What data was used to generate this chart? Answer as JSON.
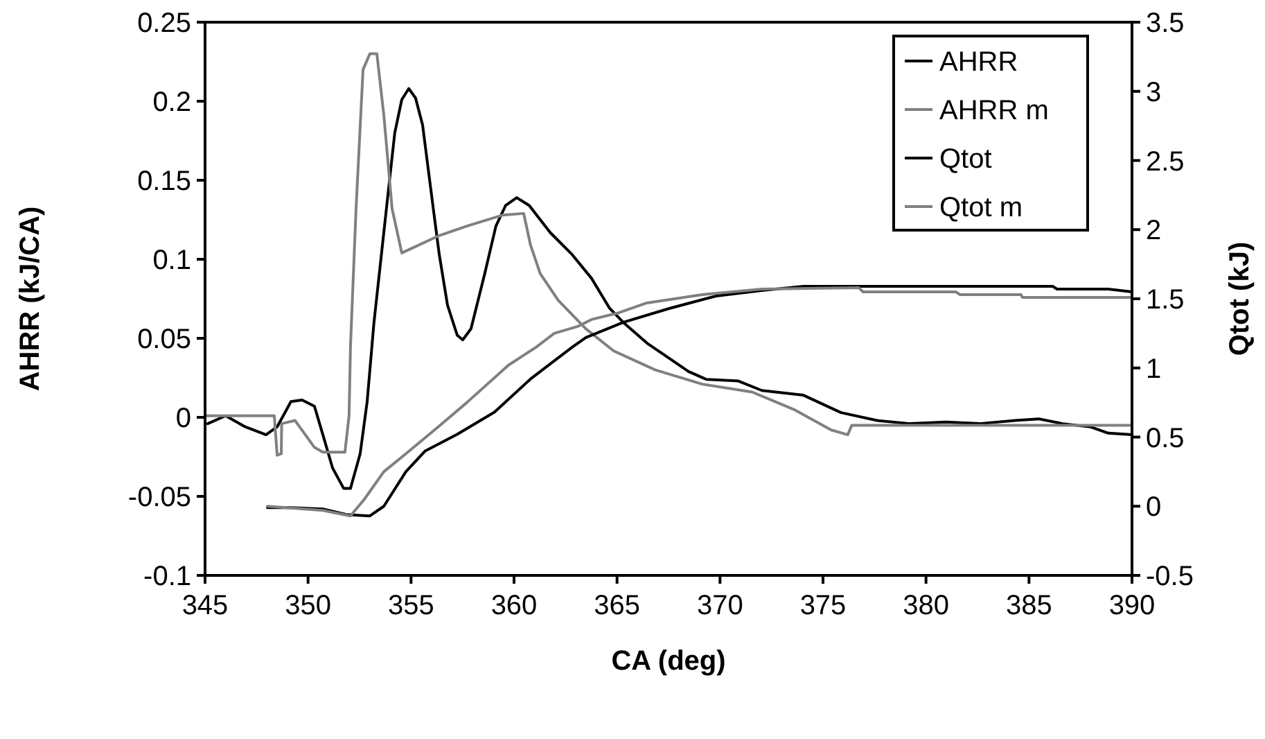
{
  "chart_data": {
    "type": "line",
    "xlabel": "CA (deg)",
    "ylabel": "AHRR (kJ/CA)",
    "y2label": "Qtot (kJ)",
    "xlim": [
      345,
      390
    ],
    "xticks": [
      345,
      350,
      355,
      360,
      365,
      370,
      375,
      380,
      385,
      390
    ],
    "ylim": [
      -0.1,
      0.25
    ],
    "yticks": [
      -0.1,
      -0.05,
      0,
      0.05,
      0.1,
      0.15,
      0.2,
      0.25
    ],
    "y2lim": [
      -0.5,
      3.5
    ],
    "y2ticks": [
      -0.5,
      0,
      0.5,
      1,
      1.5,
      2,
      2.5,
      3,
      3.5
    ],
    "grid": false,
    "legend": "top right",
    "marker": "none",
    "line_style": "solid",
    "series": [
      {
        "name": "AHRR",
        "color": "#000000",
        "x": [
          345.13,
          346.0,
          346.95,
          347.96,
          348.5,
          349.17,
          349.71,
          350.31,
          350.72,
          351.19,
          351.73,
          352.06,
          352.53,
          352.87,
          353.2,
          353.88,
          354.21,
          354.55,
          354.89,
          355.22,
          355.56,
          356.1,
          356.37,
          356.77,
          357.24,
          357.51,
          357.91,
          358.58,
          359.12,
          359.59,
          360.13,
          360.74,
          361.75,
          362.82,
          363.76,
          364.64,
          365.31,
          366.45,
          368.47,
          369.34,
          370.89,
          372.03,
          374.05,
          375.87,
          377.62,
          379.23,
          380.98,
          382.59,
          384.34,
          385.48,
          386.63,
          387.97,
          388.85,
          390
        ],
        "values": [
          -0.004,
          0.001,
          -0.006,
          -0.011,
          -0.006,
          0.01,
          0.011,
          0.007,
          -0.011,
          -0.032,
          -0.045,
          -0.045,
          -0.023,
          0.01,
          0.06,
          0.141,
          0.18,
          0.201,
          0.208,
          0.202,
          0.185,
          0.13,
          0.103,
          0.071,
          0.052,
          0.049,
          0.056,
          0.091,
          0.121,
          0.134,
          0.139,
          0.134,
          0.117,
          0.103,
          0.088,
          0.069,
          0.06,
          0.047,
          0.029,
          0.024,
          0.023,
          0.017,
          0.014,
          0.003,
          -0.002,
          -0.004,
          -0.003,
          -0.004,
          -0.002,
          -0.001,
          -0.004,
          -0.006,
          -0.01,
          -0.011
        ]
      },
      {
        "name": "AHRR m",
        "color": "#808080",
        "x": [
          345,
          348.36,
          348.5,
          348.7,
          348.72,
          349.37,
          350.31,
          350.72,
          351.79,
          351.99,
          352.06,
          352.33,
          352.67,
          353.0,
          353.34,
          353.68,
          354.08,
          354.55,
          356.37,
          357.71,
          359.46,
          360.47,
          360.8,
          361.27,
          362.15,
          363.49,
          364.84,
          366.86,
          369.14,
          371.56,
          373.58,
          375.4,
          376.2,
          376.4,
          390
        ],
        "values": [
          0.001,
          0.001,
          -0.024,
          -0.023,
          -0.004,
          -0.002,
          -0.019,
          -0.022,
          -0.022,
          0.001,
          0.045,
          0.132,
          0.22,
          0.23,
          0.23,
          0.191,
          0.132,
          0.104,
          0.115,
          0.121,
          0.128,
          0.129,
          0.109,
          0.091,
          0.074,
          0.056,
          0.042,
          0.03,
          0.021,
          0.016,
          0.005,
          -0.008,
          -0.011,
          -0.005,
          -0.005
        ]
      },
      {
        "name": "Qtot",
        "color": "#000000",
        "axis": "y2",
        "x": [
          348.03,
          349.17,
          350.72,
          351.86,
          353.0,
          353.68,
          354.75,
          355.69,
          357.24,
          359.05,
          360.8,
          362.82,
          363.49,
          365.31,
          367.53,
          369.81,
          372.03,
          374.05,
          386.16,
          386.36,
          388.85,
          390
        ],
        "values": [
          -0.01,
          -0.01,
          -0.02,
          -0.06,
          -0.07,
          0,
          0.25,
          0.4,
          0.52,
          0.68,
          0.92,
          1.15,
          1.22,
          1.33,
          1.43,
          1.52,
          1.56,
          1.59,
          1.59,
          1.57,
          1.57,
          1.55
        ]
      },
      {
        "name": "Qtot m",
        "color": "#808080",
        "axis": "y2",
        "x": [
          348.03,
          350.72,
          352.06,
          352.73,
          353.68,
          354.75,
          356.37,
          357.71,
          359.73,
          361.07,
          361.95,
          363.09,
          363.76,
          365.11,
          366.45,
          369.14,
          372.03,
          376.74,
          376.94,
          381.45,
          381.65,
          384.61,
          384.68,
          390
        ],
        "values": [
          0,
          -0.03,
          -0.07,
          0.05,
          0.25,
          0.38,
          0.58,
          0.75,
          1.02,
          1.15,
          1.25,
          1.3,
          1.35,
          1.4,
          1.47,
          1.53,
          1.57,
          1.58,
          1.55,
          1.55,
          1.53,
          1.53,
          1.51,
          1.51
        ]
      }
    ]
  }
}
